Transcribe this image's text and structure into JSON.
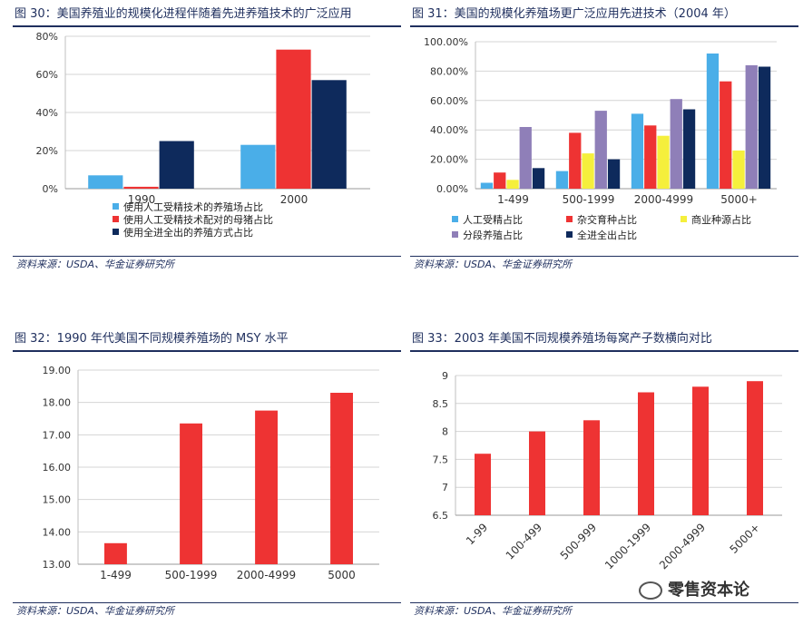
{
  "source_text": "资料来源：USDA、华金证券研究所",
  "watermark": "零售资本论",
  "chart_data": [
    {
      "id": "fig30",
      "type": "bar",
      "title": "图 30：美国养殖业的规模化进程伴随着先进养殖技术的广泛应用",
      "categories": [
        "1990",
        "2000"
      ],
      "series": [
        {
          "name": "使用人工受精技术的养殖场占比",
          "color": "#4aaee8",
          "values": [
            7,
            23
          ]
        },
        {
          "name": "使用人工受精技术配对的母猪占比",
          "color": "#ee3333",
          "values": [
            1,
            73
          ]
        },
        {
          "name": "使用全进全出的养殖方式占比",
          "color": "#0e2a5c",
          "values": [
            25,
            57
          ]
        }
      ],
      "ylim": [
        0,
        80
      ],
      "yticks": [
        "0%",
        "20%",
        "40%",
        "60%",
        "80%"
      ],
      "ytick_values": [
        0,
        20,
        40,
        60,
        80
      ],
      "grid": true,
      "legend": "bottom-left"
    },
    {
      "id": "fig31",
      "type": "bar",
      "title": "图 31：美国的规模化养殖场更广泛应用先进技术（2004 年）",
      "categories": [
        "1-499",
        "500-1999",
        "2000-4999",
        "5000+"
      ],
      "series": [
        {
          "name": "人工受精占比",
          "color": "#4aaee8",
          "values": [
            4,
            12,
            51,
            92
          ]
        },
        {
          "name": "杂交育种占比",
          "color": "#ee3333",
          "values": [
            11,
            38,
            43,
            73
          ]
        },
        {
          "name": "商业种源占比",
          "color": "#f5ef3c",
          "values": [
            6,
            24,
            36,
            26
          ]
        },
        {
          "name": "分段养殖占比",
          "color": "#8f7fb8",
          "values": [
            42,
            53,
            61,
            84
          ]
        },
        {
          "name": "全进全出占比",
          "color": "#0e2a5c",
          "values": [
            14,
            20,
            54,
            83
          ]
        }
      ],
      "ylim": [
        0,
        100
      ],
      "yticks": [
        "0.00%",
        "20.00%",
        "40.00%",
        "60.00%",
        "80.00%",
        "100.00%"
      ],
      "ytick_values": [
        0,
        20,
        40,
        60,
        80,
        100
      ],
      "grid": true,
      "legend": "bottom"
    },
    {
      "id": "fig32",
      "type": "bar",
      "title": "图 32：1990 年代美国不同规模养殖场的 MSY 水平",
      "categories": [
        "1-499",
        "500-1999",
        "2000-4999",
        "5000"
      ],
      "series": [
        {
          "name": "",
          "color": "#ee3333",
          "values": [
            13.65,
            17.35,
            17.75,
            18.3
          ]
        }
      ],
      "ylim": [
        13,
        19
      ],
      "yticks": [
        "13.00",
        "14.00",
        "15.00",
        "16.00",
        "17.00",
        "18.00",
        "19.00"
      ],
      "ytick_values": [
        13,
        14,
        15,
        16,
        17,
        18,
        19
      ],
      "grid": true
    },
    {
      "id": "fig33",
      "type": "bar",
      "title": "图 33：2003 年美国不同规模养殖场每窝产子数横向对比",
      "categories": [
        "1-99",
        "100-499",
        "500-999",
        "1000-1999",
        "2000-4999",
        "5000+"
      ],
      "series": [
        {
          "name": "",
          "color": "#ee3333",
          "values": [
            7.6,
            8.0,
            8.2,
            8.7,
            8.8,
            8.9
          ]
        }
      ],
      "ylim": [
        6.5,
        9
      ],
      "yticks": [
        "6.5",
        "7",
        "7.5",
        "8",
        "8.5",
        "9"
      ],
      "ytick_values": [
        6.5,
        7,
        7.5,
        8,
        8.5,
        9
      ],
      "grid": true,
      "rotated_xlabels": true
    }
  ]
}
